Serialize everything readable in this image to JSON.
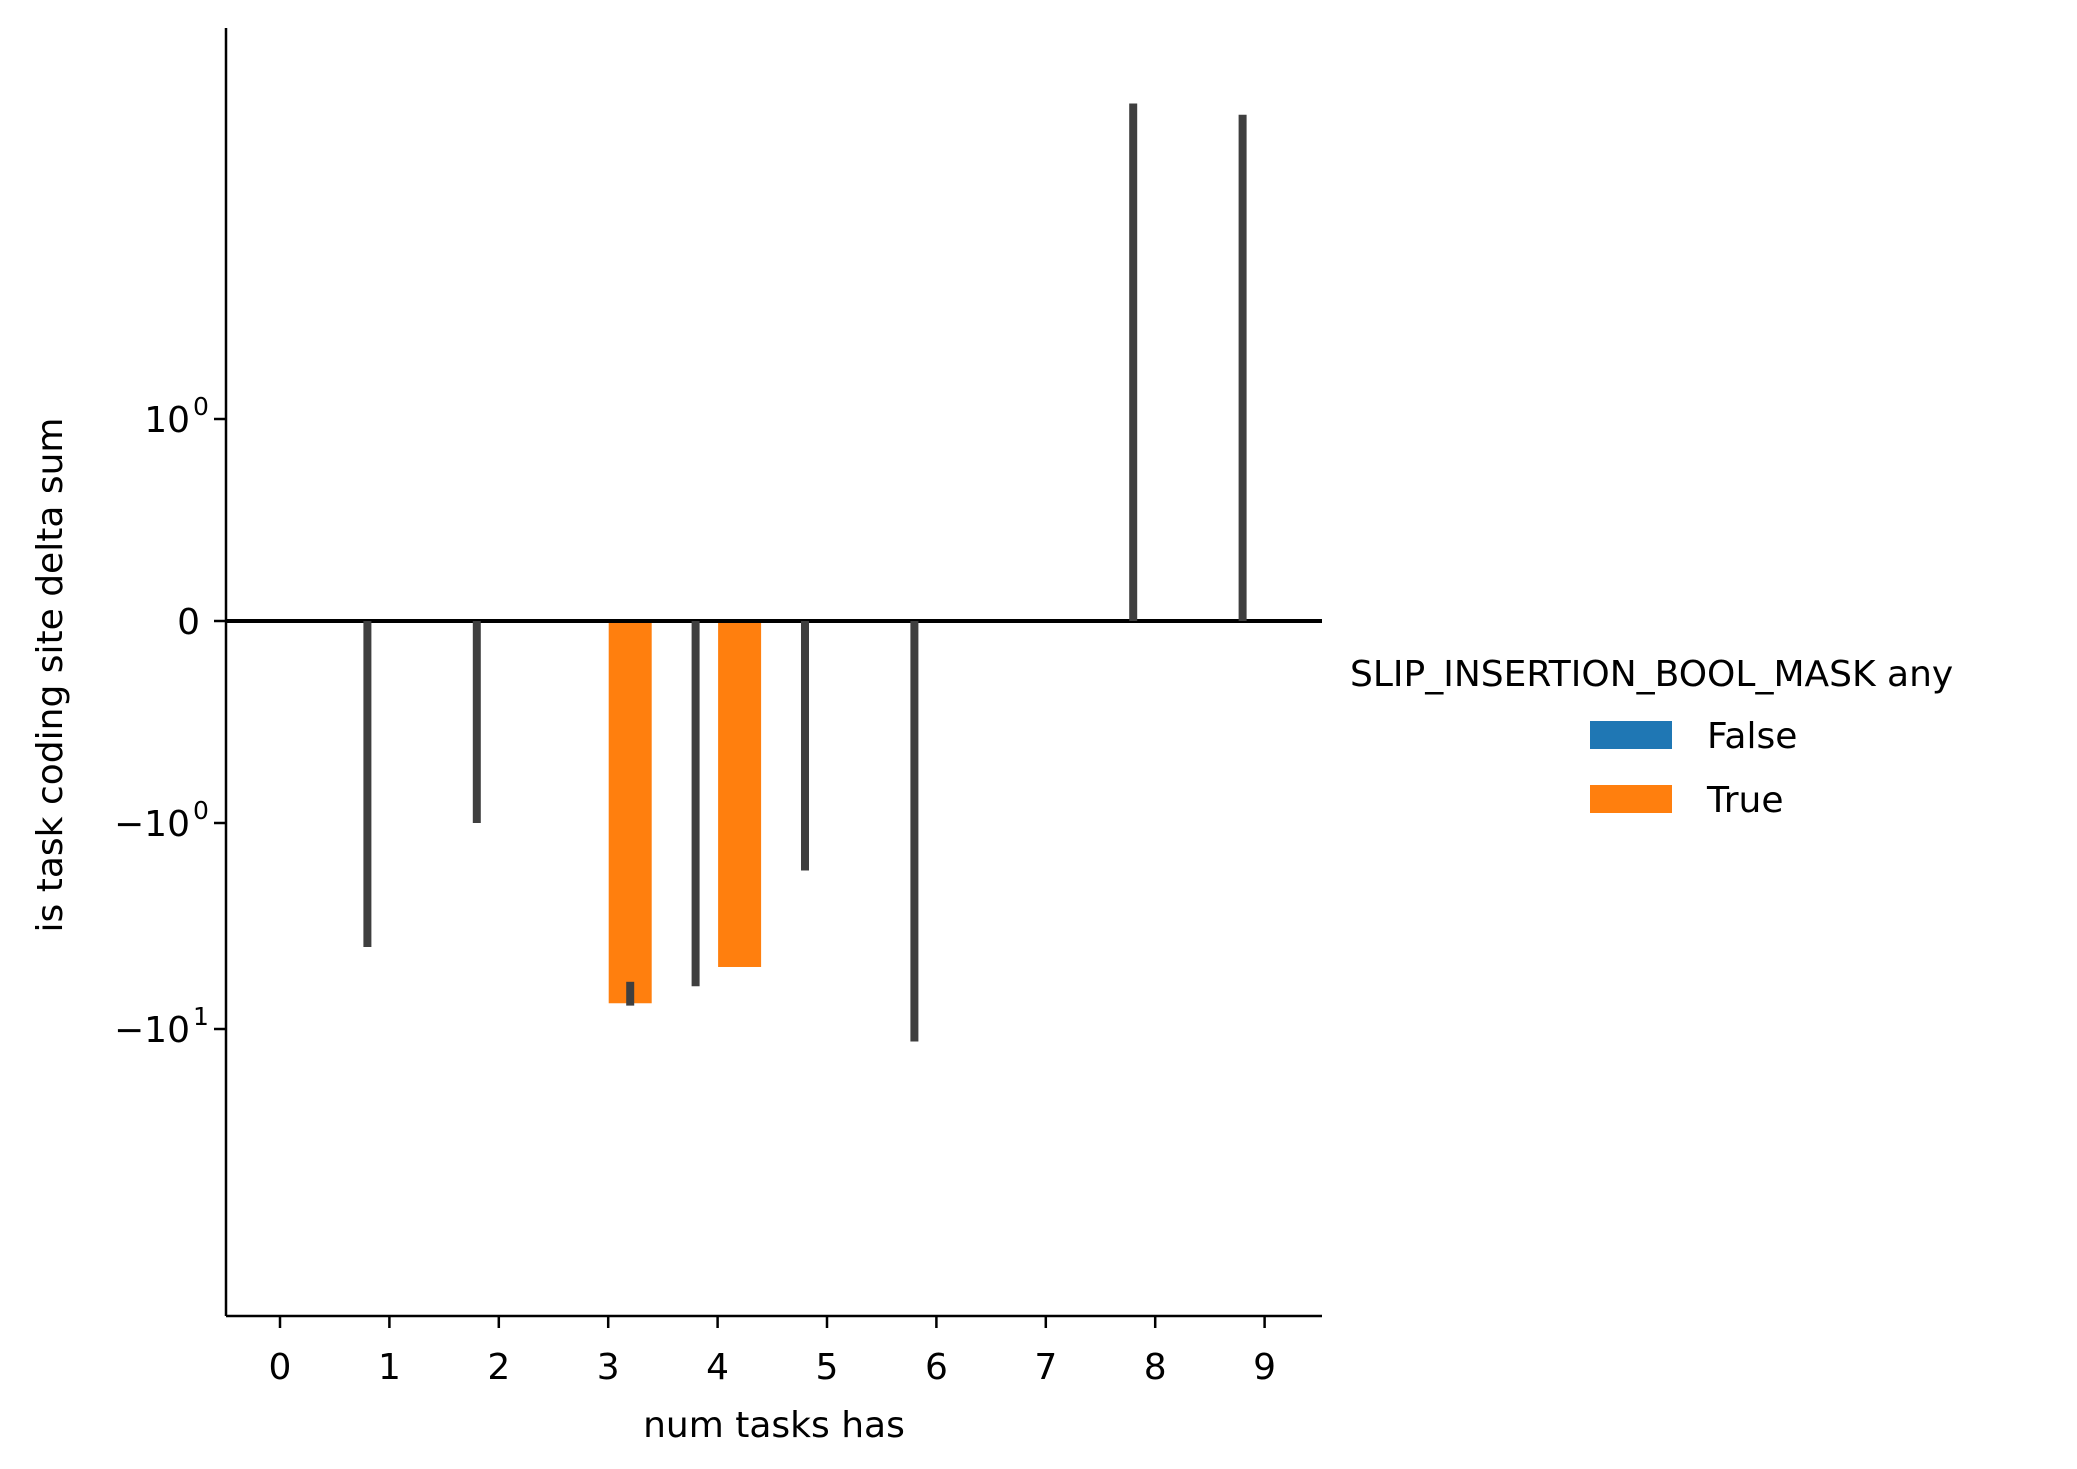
{
  "chart_data": {
    "type": "bar",
    "xlabel": "num tasks has",
    "ylabel": "is task coding site delta sum",
    "yscale": "symlog",
    "ylim": [
      -12.5,
      38
    ],
    "grid": false,
    "categories": [
      "0",
      "1",
      "2",
      "3",
      "4",
      "5",
      "6",
      "7",
      "8",
      "9"
    ],
    "y_ticks": [
      {
        "value": 1,
        "base": "10",
        "exp": "0"
      },
      {
        "value": 0,
        "base": "0",
        "exp": ""
      },
      {
        "value": -1,
        "base": "−10",
        "exp": "0"
      },
      {
        "value": -10,
        "base": "−10",
        "exp": "1"
      }
    ],
    "legend": {
      "title": "SLIP_INSERTION_BOOL_MASK any",
      "placement": "right",
      "entries": [
        {
          "label": "False",
          "color": "#1f77b4"
        },
        {
          "label": "True",
          "color": "#ff7f0e"
        }
      ]
    },
    "series": [
      {
        "name": "False",
        "color": "#1f77b4",
        "values": [
          null,
          0,
          0,
          null,
          0,
          0,
          0,
          null,
          0,
          0
        ],
        "error_bars": [
          null,
          [
            -4.0,
            0
          ],
          [
            -1.0,
            0
          ],
          null,
          [
            -6.2,
            0
          ],
          [
            -1.7,
            0
          ],
          [
            -11.5,
            0
          ],
          null,
          [
            0,
            34
          ],
          [
            0,
            30
          ]
        ]
      },
      {
        "name": "True",
        "color": "#ff7f0e",
        "values": [
          null,
          null,
          null,
          -7.5,
          -5.0,
          null,
          null,
          null,
          null,
          null
        ],
        "error_bars": [
          null,
          null,
          null,
          [
            -7.7,
            -5.9
          ],
          null,
          null,
          null,
          null,
          null,
          null
        ]
      }
    ]
  }
}
